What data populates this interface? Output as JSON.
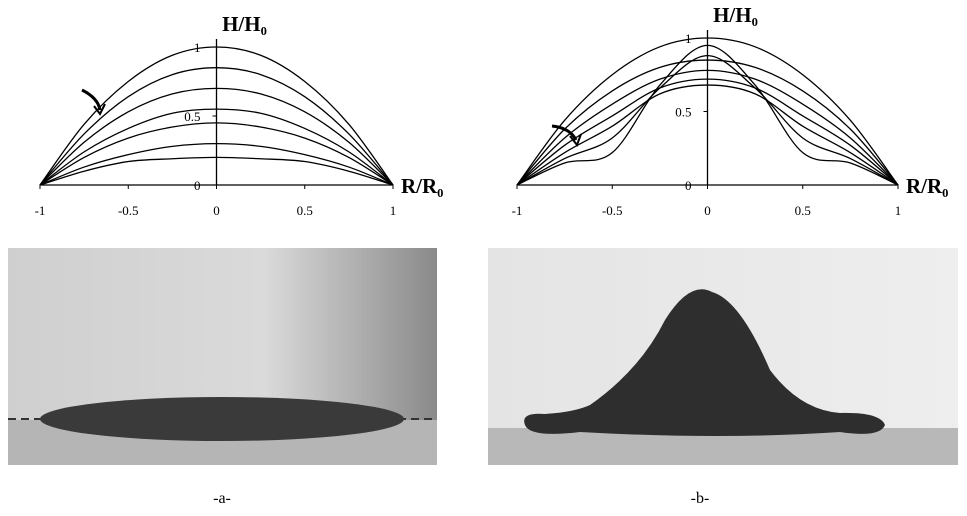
{
  "chart_data": [
    {
      "type": "line",
      "ylabel": "H/H₀",
      "xlabel": "R/R₀",
      "caption": "-a-",
      "xlim": [
        -1,
        1
      ],
      "ylim": [
        0,
        1
      ],
      "xticks": [
        -1,
        -0.5,
        0,
        0.5,
        1
      ],
      "yticks": [
        0,
        0.5,
        1
      ],
      "color": "#000",
      "x": [
        -1,
        -0.75,
        -0.5,
        -0.25,
        0,
        0.25,
        0.5,
        0.75,
        1
      ],
      "series": [
        {
          "values": [
            0,
            0.44,
            0.75,
            0.94,
            1,
            0.94,
            0.75,
            0.44,
            0
          ]
        },
        {
          "values": [
            0,
            0.37,
            0.64,
            0.8,
            0.85,
            0.8,
            0.64,
            0.37,
            0
          ]
        },
        {
          "values": [
            0,
            0.31,
            0.53,
            0.66,
            0.7,
            0.66,
            0.53,
            0.31,
            0
          ]
        },
        {
          "values": [
            0,
            0.24,
            0.41,
            0.52,
            0.55,
            0.52,
            0.41,
            0.24,
            0
          ]
        },
        {
          "values": [
            0,
            0.2,
            0.34,
            0.42,
            0.45,
            0.42,
            0.34,
            0.2,
            0
          ]
        },
        {
          "values": [
            0,
            0.13,
            0.22,
            0.28,
            0.3,
            0.28,
            0.22,
            0.13,
            0
          ]
        },
        {
          "values": [
            0,
            0.1,
            0.17,
            0.19,
            0.2,
            0.19,
            0.17,
            0.1,
            0
          ]
        }
      ]
    },
    {
      "type": "line",
      "ylabel": "H/H₀",
      "xlabel": "R/R₀",
      "caption": "-b-",
      "xlim": [
        -1,
        1
      ],
      "ylim": [
        0,
        1
      ],
      "xticks": [
        -1,
        -0.5,
        0,
        0.5,
        1
      ],
      "yticks": [
        0,
        0.5,
        1
      ],
      "color": "#000",
      "x": [
        -1,
        -0.75,
        -0.5,
        -0.25,
        0,
        0.25,
        0.5,
        0.75,
        1
      ],
      "series": [
        {
          "values": [
            0,
            0.44,
            0.75,
            0.94,
            1,
            0.94,
            0.75,
            0.44,
            0
          ]
        },
        {
          "values": [
            0,
            0.38,
            0.64,
            0.8,
            0.85,
            0.8,
            0.64,
            0.38,
            0
          ]
        },
        {
          "values": [
            0,
            0.32,
            0.55,
            0.72,
            0.78,
            0.72,
            0.55,
            0.32,
            0
          ]
        },
        {
          "values": [
            0,
            0.27,
            0.47,
            0.66,
            0.72,
            0.66,
            0.47,
            0.27,
            0
          ]
        },
        {
          "values": [
            0,
            0.22,
            0.4,
            0.62,
            0.68,
            0.62,
            0.4,
            0.22,
            0
          ]
        },
        {
          "values": [
            0,
            0.18,
            0.32,
            0.66,
            0.88,
            0.66,
            0.32,
            0.18,
            0
          ]
        },
        {
          "values": [
            0,
            0.15,
            0.22,
            0.68,
            0.95,
            0.68,
            0.22,
            0.15,
            0
          ]
        }
      ]
    }
  ]
}
